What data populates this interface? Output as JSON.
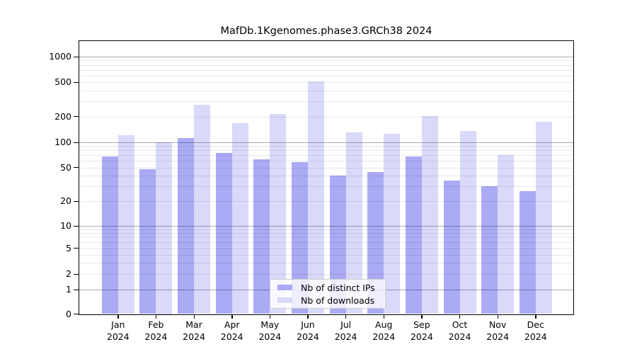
{
  "title": "MafDb.1Kgenomes.phase3.GRCh38 2024",
  "chart_data": {
    "type": "bar",
    "title": "MafDb.1Kgenomes.phase3.GRCh38 2024",
    "categories": [
      "Jan",
      "Feb",
      "Mar",
      "Apr",
      "May",
      "Jun",
      "Jul",
      "Aug",
      "Sep",
      "Oct",
      "Nov",
      "Dec"
    ],
    "year": "2024",
    "series": [
      {
        "name": "Nb of distinct IPs",
        "color": "#aaaaf5",
        "values": [
          68,
          48,
          113,
          75,
          63,
          58,
          40,
          44,
          68,
          35,
          30,
          26
        ]
      },
      {
        "name": "Nb of downloads",
        "color": "#d9d9fa",
        "values": [
          122,
          100,
          275,
          168,
          214,
          507,
          131,
          125,
          203,
          136,
          70,
          174
        ]
      }
    ],
    "xlabel": "",
    "ylabel": "",
    "yticks": [
      0,
      1,
      2,
      5,
      10,
      20,
      50,
      100,
      200,
      500,
      1000
    ],
    "ytick_labels": [
      "0",
      "1",
      "2",
      "5",
      "10",
      "20",
      "50",
      "100",
      "200",
      "500",
      "1000"
    ],
    "scale": "symlog",
    "ylim": [
      0,
      1500
    ],
    "grid": true,
    "legend_position": "lower center",
    "colors": {
      "distinct_ips": "#aaaaf5",
      "downloads": "#d9d9fa",
      "major_grid": "#adadad",
      "minor_grid": "#e8e8e8",
      "axis": "#000000",
      "background": "#ffffff"
    }
  }
}
